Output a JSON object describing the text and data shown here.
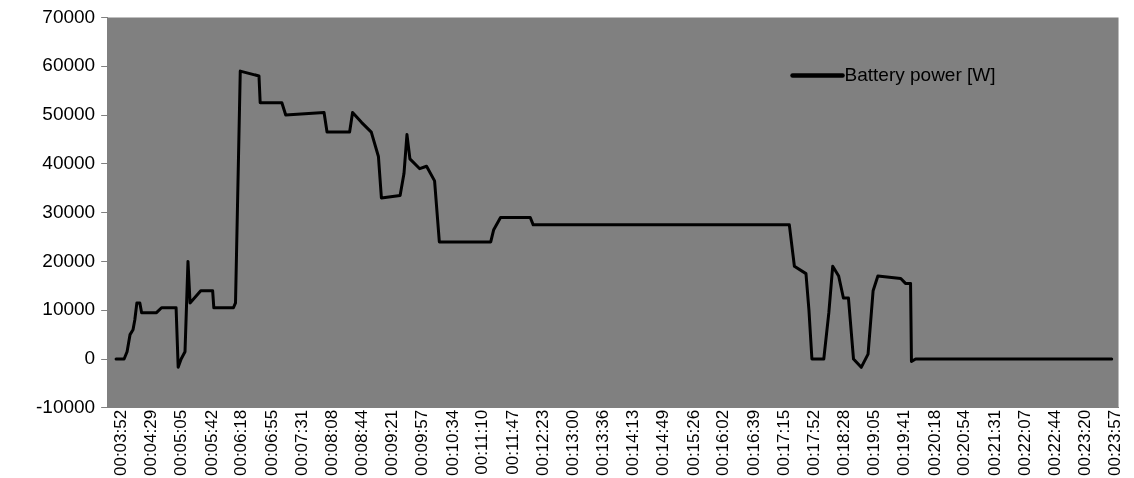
{
  "chart_data": {
    "type": "line",
    "legend": "top right",
    "marker": "none",
    "line_style": "solid",
    "grid": false,
    "xlim": [
      0.0611,
      0.4015
    ],
    "xticks": [
      {
        "value": 0.064444,
        "label": "00:03:52"
      },
      {
        "value": 0.074722,
        "label": "00:04:29"
      },
      {
        "value": 0.084722,
        "label": "00:05:05"
      },
      {
        "value": 0.095,
        "label": "00:05:42"
      },
      {
        "value": 0.105,
        "label": "00:06:18"
      },
      {
        "value": 0.115278,
        "label": "00:06:55"
      },
      {
        "value": 0.125278,
        "label": "00:07:31"
      },
      {
        "value": 0.135556,
        "label": "00:08:08"
      },
      {
        "value": 0.145556,
        "label": "00:08:44"
      },
      {
        "value": 0.155833,
        "label": "00:09:21"
      },
      {
        "value": 0.165833,
        "label": "00:09:57"
      },
      {
        "value": 0.176111,
        "label": "00:10:34"
      },
      {
        "value": 0.186111,
        "label": "00:11:10"
      },
      {
        "value": 0.196389,
        "label": "00:11:47"
      },
      {
        "value": 0.206389,
        "label": "00:12:23"
      },
      {
        "value": 0.216667,
        "label": "00:13:00"
      },
      {
        "value": 0.226667,
        "label": "00:13:36"
      },
      {
        "value": 0.236944,
        "label": "00:14:13"
      },
      {
        "value": 0.246944,
        "label": "00:14:49"
      },
      {
        "value": 0.257222,
        "label": "00:15:26"
      },
      {
        "value": 0.267222,
        "label": "00:16:02"
      },
      {
        "value": 0.2775,
        "label": "00:16:39"
      },
      {
        "value": 0.2875,
        "label": "00:17:15"
      },
      {
        "value": 0.297778,
        "label": "00:17:52"
      },
      {
        "value": 0.307778,
        "label": "00:18:28"
      },
      {
        "value": 0.318056,
        "label": "00:19:05"
      },
      {
        "value": 0.328056,
        "label": "00:19:41"
      },
      {
        "value": 0.338333,
        "label": "00:20:18"
      },
      {
        "value": 0.348333,
        "label": "00:20:54"
      },
      {
        "value": 0.358611,
        "label": "00:21:31"
      },
      {
        "value": 0.368611,
        "label": "00:22:07"
      },
      {
        "value": 0.378889,
        "label": "00:22:44"
      },
      {
        "value": 0.388889,
        "label": "00:23:20"
      },
      {
        "value": 0.399167,
        "label": "00:23:57"
      }
    ],
    "ylim": [
      -10000,
      70000
    ],
    "yticks": [
      -10000,
      0,
      10000,
      20000,
      30000,
      40000,
      50000,
      60000,
      70000
    ],
    "series": [
      {
        "name": "Battery power [W]",
        "color": "#000000",
        "x": [
          0.0641,
          0.0668,
          0.0678,
          0.0688,
          0.0698,
          0.0704,
          0.0711,
          0.0721,
          0.0727,
          0.0777,
          0.0794,
          0.0843,
          0.085,
          0.086,
          0.0873,
          0.0883,
          0.089,
          0.0926,
          0.0966,
          0.097,
          0.1036,
          0.1043,
          0.1059,
          0.1122,
          0.1126,
          0.1199,
          0.1212,
          0.1341,
          0.1351,
          0.1427,
          0.1437,
          0.1467,
          0.15,
          0.1524,
          0.1534,
          0.1597,
          0.161,
          0.162,
          0.163,
          0.1663,
          0.1686,
          0.1713,
          0.1729,
          0.1902,
          0.1912,
          0.1935,
          0.2035,
          0.2045,
          0.2907,
          0.2924,
          0.2963,
          0.2973,
          0.2983,
          0.3023,
          0.304,
          0.3053,
          0.3073,
          0.3089,
          0.3106,
          0.3123,
          0.3149,
          0.3172,
          0.3189,
          0.3205,
          0.3282,
          0.3298,
          0.3315,
          0.3318,
          0.3332,
          0.3992
        ],
        "values": [
          0,
          0,
          1500,
          5000,
          6000,
          8000,
          11500,
          11500,
          9500,
          9500,
          10500,
          10500,
          -1700,
          0,
          1500,
          20000,
          11500,
          14000,
          14000,
          10500,
          10500,
          11500,
          59000,
          58000,
          52500,
          52500,
          50000,
          50500,
          46500,
          46500,
          50500,
          48500,
          46500,
          41500,
          33000,
          33500,
          38000,
          46000,
          41000,
          39000,
          39500,
          36500,
          24000,
          24000,
          26500,
          29000,
          29000,
          27500,
          27500,
          19000,
          17500,
          10000,
          0,
          0,
          9500,
          19000,
          17000,
          12500,
          12500,
          0,
          -1700,
          1000,
          14000,
          17000,
          16500,
          15500,
          15500,
          -500,
          0,
          0
        ]
      }
    ]
  }
}
